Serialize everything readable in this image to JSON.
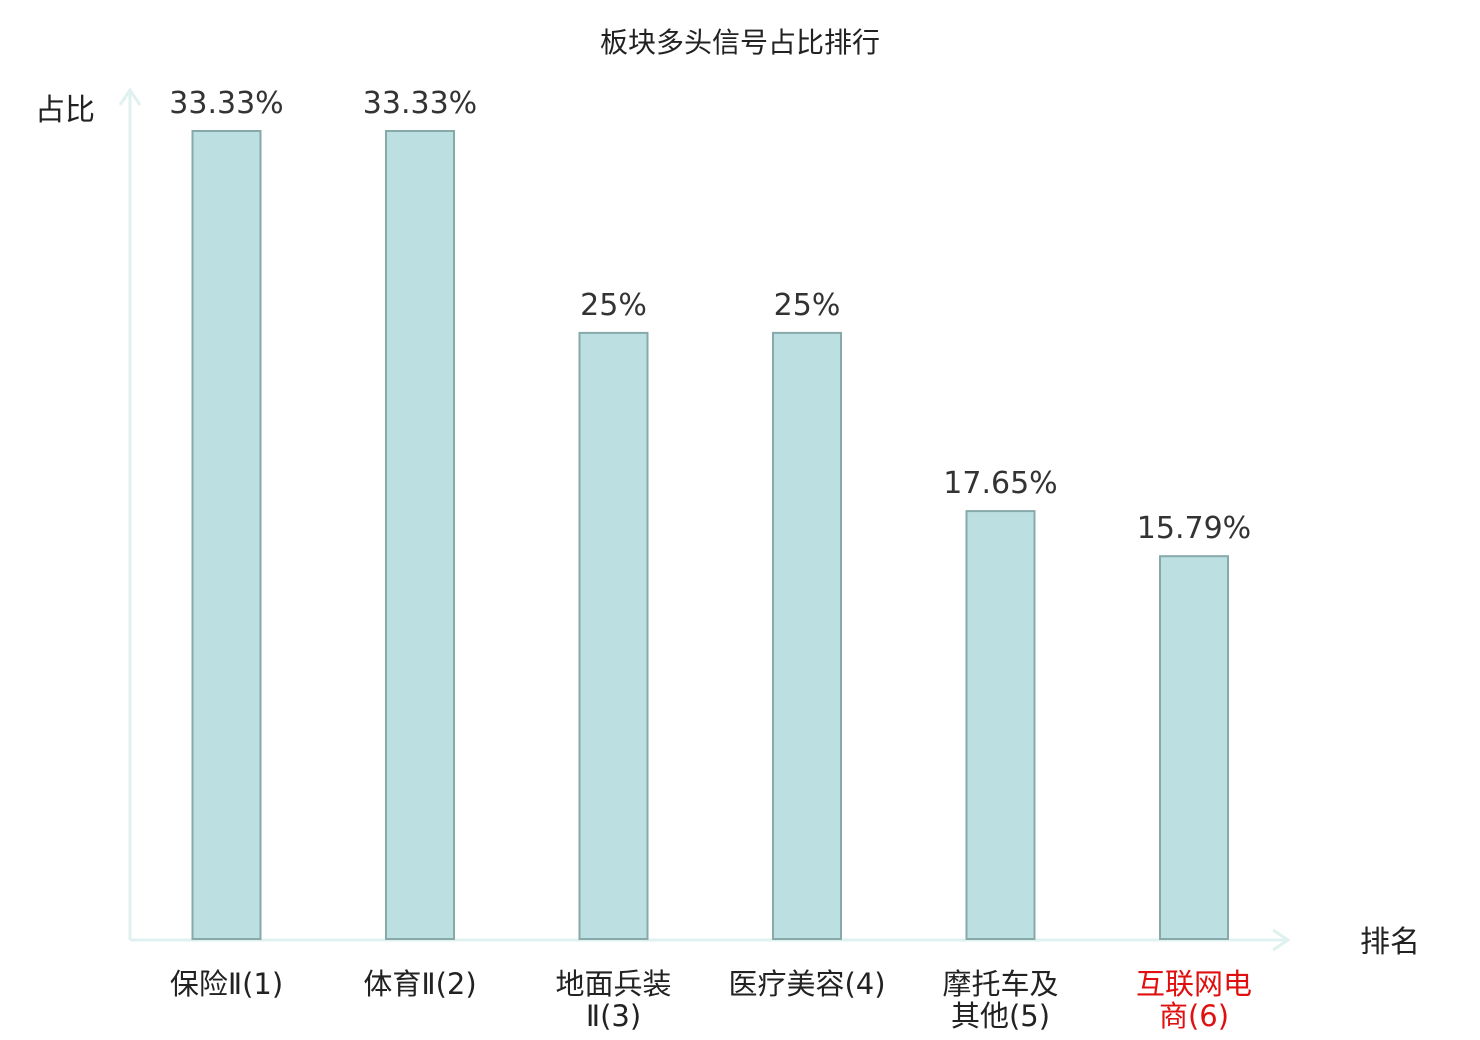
{
  "chart_data": {
    "type": "bar",
    "title": "板块多头信号占比排行",
    "xlabel": "排名",
    "ylabel": "占比",
    "ylim": [
      0,
      35
    ],
    "categories": [
      [
        "保险Ⅱ(1)"
      ],
      [
        "体育Ⅱ(2)"
      ],
      [
        "地面兵装",
        "Ⅱ(3)"
      ],
      [
        "医疗美容(4)"
      ],
      [
        "摩托车及",
        "其他(5)"
      ],
      [
        "互联网电",
        "商(6)"
      ]
    ],
    "values": [
      33.33,
      33.33,
      25,
      25,
      17.65,
      15.79
    ],
    "value_labels": [
      "33.33%",
      "33.33%",
      "25%",
      "25%",
      "17.65%",
      "15.79%"
    ],
    "highlight_index": 5,
    "grid": false,
    "legend": "none"
  },
  "colors": {
    "bar_fill": "#bce0e2",
    "bar_stroke": "#87a9aa",
    "axis": "#dff2ef",
    "tick_label": "#222222",
    "highlight_label": "#e01010"
  }
}
